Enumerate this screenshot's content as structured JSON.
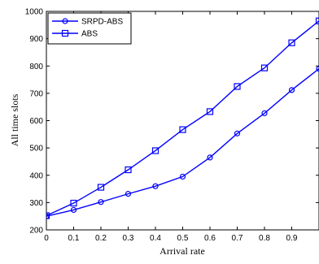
{
  "chart_data": {
    "type": "line",
    "xlabel": "Arrival rate",
    "ylabel": "All time slots",
    "xlim": [
      0,
      1
    ],
    "ylim": [
      200,
      1000
    ],
    "x_ticks": [
      0,
      0.1,
      0.2,
      0.3,
      0.4,
      0.5,
      0.6,
      0.7,
      0.8,
      0.9
    ],
    "x_tick_labels": [
      "0",
      "0.1",
      "0.2",
      "0.3",
      "0.4",
      "0.5",
      "0.6",
      "0.7",
      "0.8",
      "0.9"
    ],
    "y_ticks": [
      200,
      300,
      400,
      500,
      600,
      700,
      800,
      900,
      1000
    ],
    "y_tick_labels": [
      "200",
      "300",
      "400",
      "500",
      "600",
      "700",
      "800",
      "900",
      "1000"
    ],
    "grid": false,
    "legend_position": "top-left",
    "series": [
      {
        "name": "SRPD-ABS",
        "marker": "circle",
        "color": "#0000ff",
        "x": [
          0,
          0.1,
          0.2,
          0.3,
          0.4,
          0.5,
          0.6,
          0.7,
          0.8,
          0.9,
          1.0
        ],
        "values": [
          250,
          273,
          302,
          332,
          360,
          395,
          465,
          553,
          627,
          712,
          790
        ]
      },
      {
        "name": "ABS",
        "marker": "square",
        "color": "#0000ff",
        "x": [
          0,
          0.1,
          0.2,
          0.3,
          0.4,
          0.5,
          0.6,
          0.7,
          0.8,
          0.9,
          1.0
        ],
        "values": [
          252,
          298,
          356,
          420,
          490,
          567,
          633,
          725,
          793,
          885,
          965
        ]
      }
    ]
  }
}
